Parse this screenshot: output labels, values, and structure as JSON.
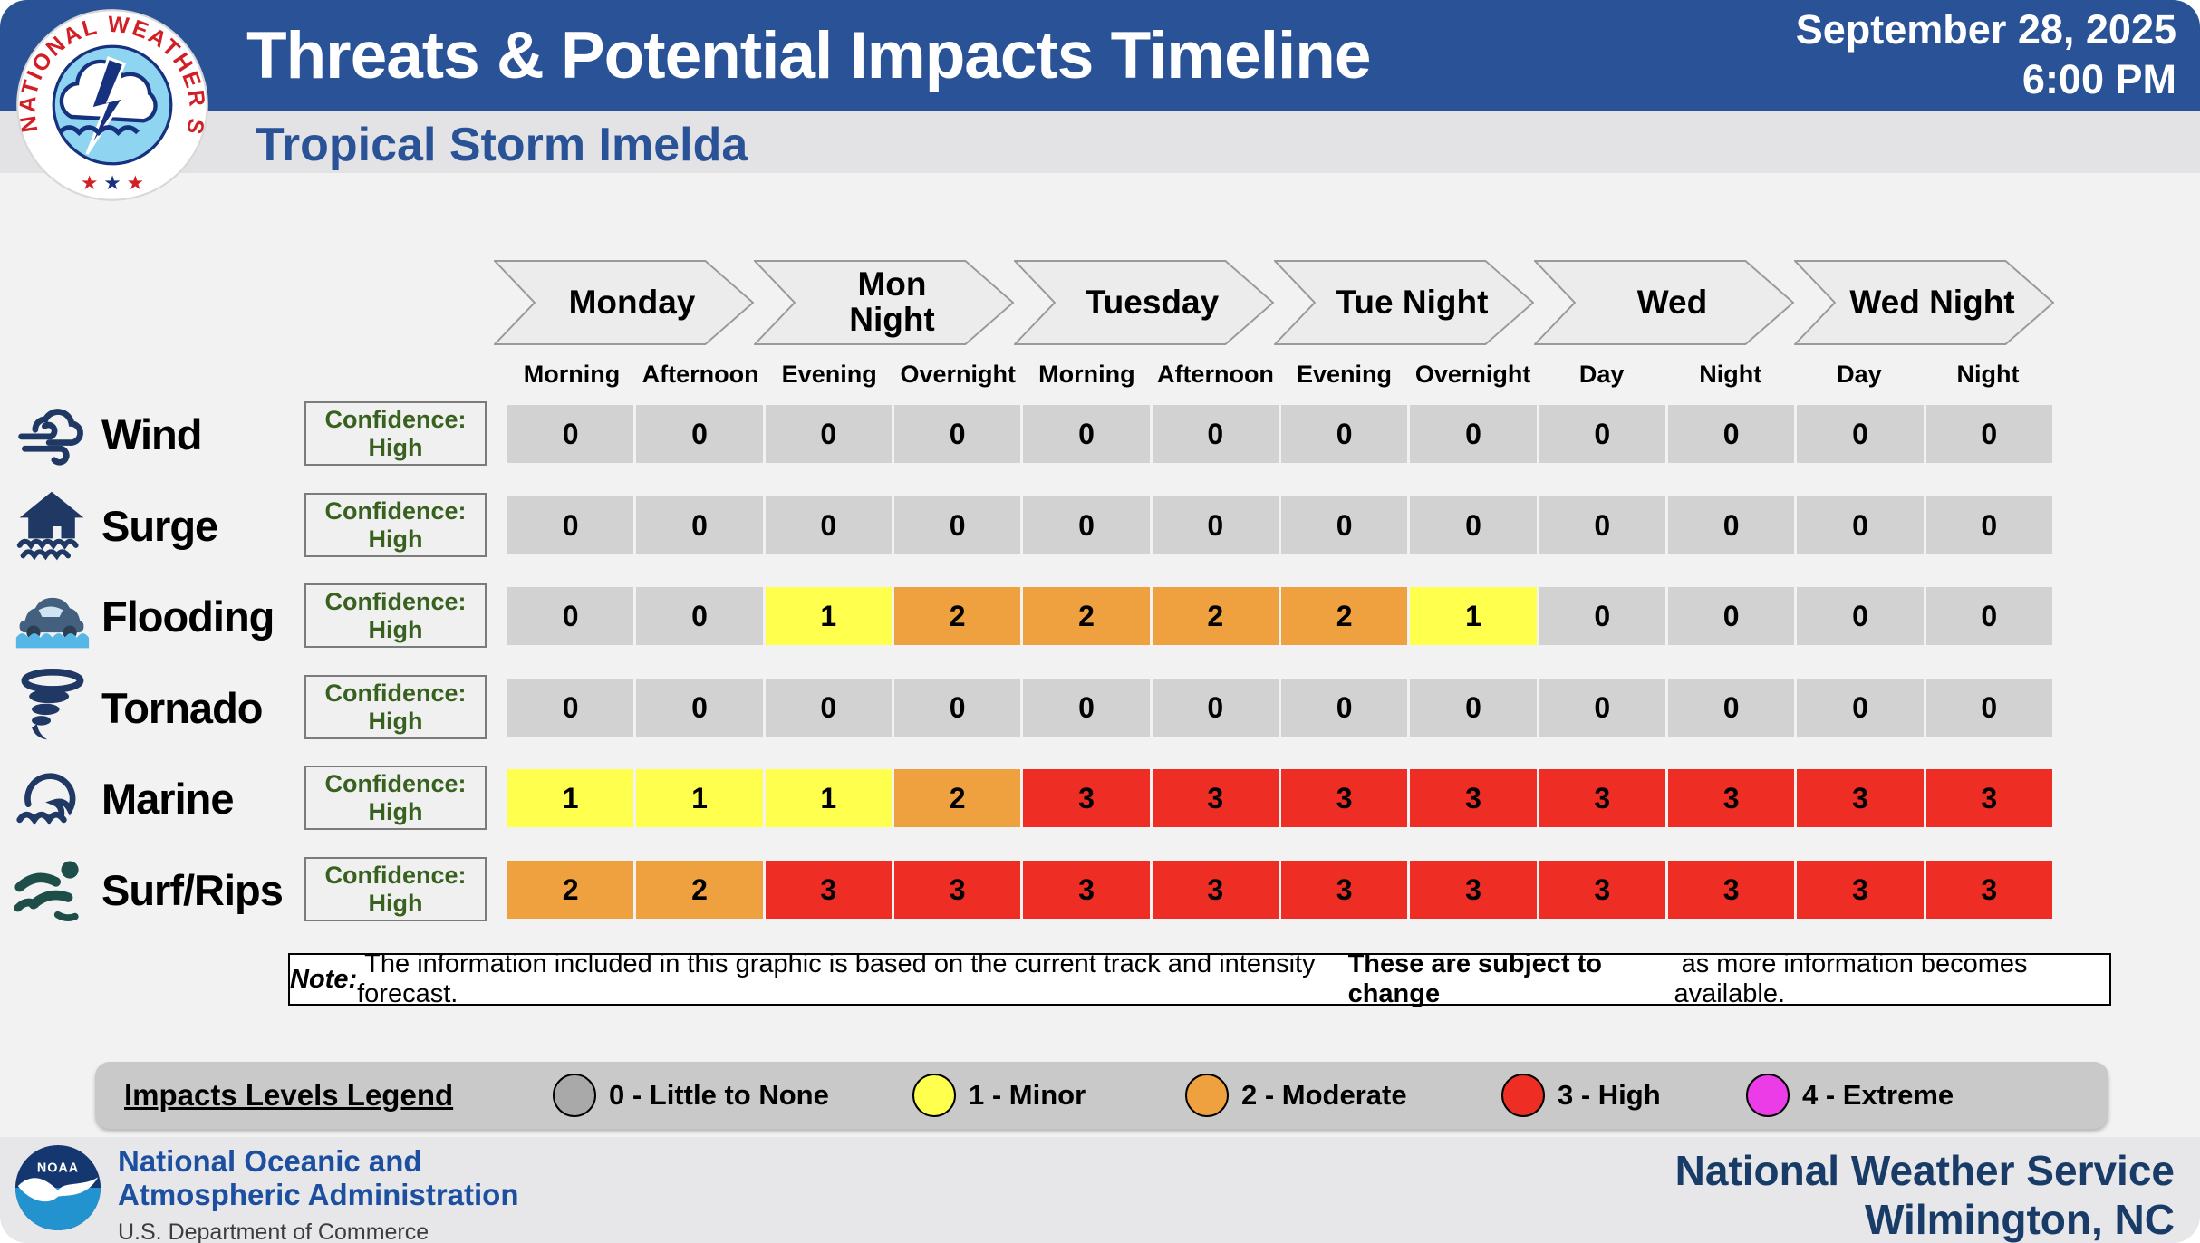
{
  "header": {
    "title": "Threats & Potential Impacts Timeline",
    "subtitle": "Tropical Storm Imelda",
    "date": "September 28, 2025",
    "time": "6:00 PM"
  },
  "timeline": {
    "days": [
      "Monday",
      "Mon\nNight",
      "Tuesday",
      "Tue Night",
      "Wed",
      "Wed Night"
    ],
    "periods": [
      "Morning",
      "Afternoon",
      "Evening",
      "Overnight",
      "Morning",
      "Afternoon",
      "Evening",
      "Overnight",
      "Day",
      "Night",
      "Day",
      "Night"
    ]
  },
  "rows": [
    {
      "label": "Wind",
      "icon": "wind-icon",
      "confidence_title": "Confidence:",
      "confidence_level": "High",
      "values": [
        0,
        0,
        0,
        0,
        0,
        0,
        0,
        0,
        0,
        0,
        0,
        0
      ]
    },
    {
      "label": "Surge",
      "icon": "surge-icon",
      "confidence_title": "Confidence:",
      "confidence_level": "High",
      "values": [
        0,
        0,
        0,
        0,
        0,
        0,
        0,
        0,
        0,
        0,
        0,
        0
      ]
    },
    {
      "label": "Flooding",
      "icon": "flooding-icon",
      "confidence_title": "Confidence:",
      "confidence_level": "High",
      "values": [
        0,
        0,
        1,
        2,
        2,
        2,
        2,
        1,
        0,
        0,
        0,
        0
      ]
    },
    {
      "label": "Tornado",
      "icon": "tornado-icon",
      "confidence_title": "Confidence:",
      "confidence_level": "High",
      "values": [
        0,
        0,
        0,
        0,
        0,
        0,
        0,
        0,
        0,
        0,
        0,
        0
      ]
    },
    {
      "label": "Marine",
      "icon": "marine-icon",
      "confidence_title": "Confidence:",
      "confidence_level": "High",
      "values": [
        1,
        1,
        1,
        2,
        3,
        3,
        3,
        3,
        3,
        3,
        3,
        3
      ]
    },
    {
      "label": "Surf/Rips",
      "icon": "swimmer-icon",
      "confidence_title": "Confidence:",
      "confidence_level": "High",
      "values": [
        2,
        2,
        3,
        3,
        3,
        3,
        3,
        3,
        3,
        3,
        3,
        3
      ]
    }
  ],
  "impact_colors": {
    "0": "#d2d2d2",
    "1": "#ffff4d",
    "2": "#efa03f",
    "3": "#ee2d24",
    "4": "#ec3ce8"
  },
  "note": {
    "prefix": "Note:",
    "text1": " The information included in this graphic is based on the current track and intensity forecast. ",
    "bold": "These are subject to change",
    "text2": " as more information becomes available."
  },
  "legend": {
    "title": "Impacts Levels Legend",
    "items": [
      {
        "value": 0,
        "label": "0 - Little to None",
        "color": "#a9a9a9"
      },
      {
        "value": 1,
        "label": "1 - Minor",
        "color": "#ffff4d"
      },
      {
        "value": 2,
        "label": "2 - Moderate",
        "color": "#efa03f"
      },
      {
        "value": 3,
        "label": "3 - High",
        "color": "#ee2d24"
      },
      {
        "value": 4,
        "label": "4 - Extreme",
        "color": "#ec3ce8"
      }
    ]
  },
  "footer": {
    "noaa_line1": "National Oceanic and",
    "noaa_line2": "Atmospheric Administration",
    "noaa_line3": "U.S. Department of Commerce",
    "nws_line1": "National Weather Service",
    "nws_line2": "Wilmington, NC"
  },
  "chart_data": {
    "type": "heatmap",
    "title": "Threats & Potential Impacts Timeline",
    "subtitle": "Tropical Storm Imelda",
    "issued": "September 28, 2025 6:00 PM",
    "source": "National Weather Service Wilmington, NC",
    "columns": [
      "Monday Morning",
      "Monday Afternoon",
      "Mon Night Evening",
      "Mon Night Overnight",
      "Tuesday Morning",
      "Tuesday Afternoon",
      "Tue Night Evening",
      "Tue Night Overnight",
      "Wed Day",
      "Wed Night",
      "Wed Night Day",
      "Wed Night Night"
    ],
    "rows": [
      "Wind",
      "Surge",
      "Flooding",
      "Tornado",
      "Marine",
      "Surf/Rips"
    ],
    "values": [
      [
        0,
        0,
        0,
        0,
        0,
        0,
        0,
        0,
        0,
        0,
        0,
        0
      ],
      [
        0,
        0,
        0,
        0,
        0,
        0,
        0,
        0,
        0,
        0,
        0,
        0
      ],
      [
        0,
        0,
        1,
        2,
        2,
        2,
        2,
        1,
        0,
        0,
        0,
        0
      ],
      [
        0,
        0,
        0,
        0,
        0,
        0,
        0,
        0,
        0,
        0,
        0,
        0
      ],
      [
        1,
        1,
        1,
        2,
        3,
        3,
        3,
        3,
        3,
        3,
        3,
        3
      ],
      [
        2,
        2,
        3,
        3,
        3,
        3,
        3,
        3,
        3,
        3,
        3,
        3
      ]
    ],
    "confidence": {
      "Wind": "High",
      "Surge": "High",
      "Flooding": "High",
      "Tornado": "High",
      "Marine": "High",
      "Surf/Rips": "High"
    },
    "scale": {
      "0": "Little to None",
      "1": "Minor",
      "2": "Moderate",
      "3": "High",
      "4": "Extreme"
    },
    "legend_position": "bottom"
  }
}
